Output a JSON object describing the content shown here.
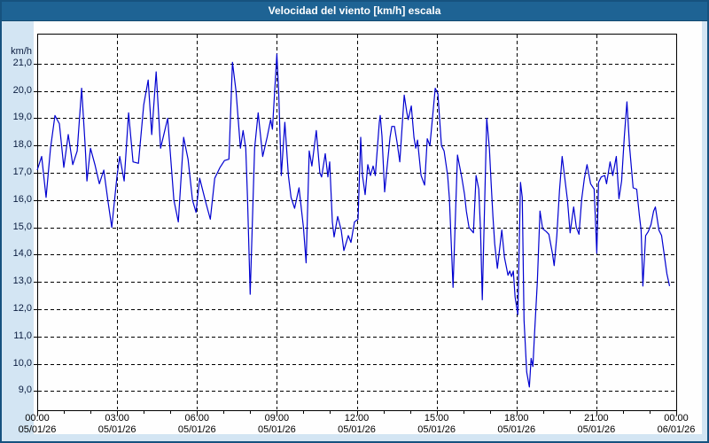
{
  "window": {
    "title": "Velocidad del viento [km/h] escala"
  },
  "colors": {
    "titlebar_bg": "#1e6394",
    "window_border": "#16527f",
    "window_bg": "#d3e5f3",
    "panel_bg": "#fefefe",
    "line_color": "#0000d0",
    "grid_color": "#000000",
    "y_label_color": "#0a1c3f",
    "x_label_color": "#000000"
  },
  "chart_data": {
    "type": "line",
    "title": "Velocidad del viento [km/h] escala",
    "y_unit_label": "km/h",
    "xlabel": "",
    "ylabel": "km/h",
    "grid": "dashed",
    "legend": "none",
    "xlim_hours": [
      0,
      24
    ],
    "ylim": [
      8.3,
      22.1
    ],
    "y_ticks": [
      {
        "v": 21,
        "label": "21,0"
      },
      {
        "v": 20,
        "label": "20,0"
      },
      {
        "v": 19,
        "label": "19,0"
      },
      {
        "v": 18,
        "label": "18,0"
      },
      {
        "v": 17,
        "label": "17,0"
      },
      {
        "v": 16,
        "label": "16,0"
      },
      {
        "v": 15,
        "label": "15,0"
      },
      {
        "v": 14,
        "label": "14,0"
      },
      {
        "v": 13,
        "label": "13,0"
      },
      {
        "v": 12,
        "label": "12,0"
      },
      {
        "v": 11,
        "label": "11,0"
      },
      {
        "v": 10,
        "label": "10,0"
      },
      {
        "v": 9,
        "label": "9,0"
      }
    ],
    "x_ticks": [
      {
        "hour": 0,
        "time": "00:00",
        "date": "05/01/26"
      },
      {
        "hour": 3,
        "time": "03:00",
        "date": "05/01/26"
      },
      {
        "hour": 6,
        "time": "06:00",
        "date": "05/01/26"
      },
      {
        "hour": 9,
        "time": "09:00",
        "date": "05/01/26"
      },
      {
        "hour": 12,
        "time": "12:00",
        "date": "05/01/26"
      },
      {
        "hour": 15,
        "time": "15:00",
        "date": "05/01/26"
      },
      {
        "hour": 18,
        "time": "18:00",
        "date": "05/01/26"
      },
      {
        "hour": 21,
        "time": "21:00",
        "date": "05/01/26"
      },
      {
        "hour": 24,
        "time": "00:00",
        "date": "06/01/26"
      }
    ],
    "minor_tick_every_hours": 1,
    "series": [
      {
        "name": "Velocidad del viento [km/h]",
        "points": [
          [
            0,
            17.1
          ],
          [
            10,
            17.6
          ],
          [
            20,
            16.1
          ],
          [
            30,
            17.9
          ],
          [
            40,
            19.1
          ],
          [
            50,
            18.8
          ],
          [
            60,
            17.2
          ],
          [
            70,
            18.4
          ],
          [
            80,
            17.3
          ],
          [
            90,
            17.8
          ],
          [
            100,
            20.1
          ],
          [
            108,
            18.0
          ],
          [
            112,
            16.7
          ],
          [
            120,
            17.9
          ],
          [
            130,
            17.3
          ],
          [
            140,
            16.6
          ],
          [
            150,
            17.1
          ],
          [
            160,
            15.9
          ],
          [
            168,
            15.0
          ],
          [
            180,
            16.9
          ],
          [
            186,
            17.6
          ],
          [
            196,
            16.7
          ],
          [
            206,
            19.2
          ],
          [
            216,
            17.4
          ],
          [
            228,
            17.35
          ],
          [
            240,
            19.5
          ],
          [
            250,
            20.4
          ],
          [
            258,
            18.4
          ],
          [
            268,
            20.7
          ],
          [
            278,
            17.9
          ],
          [
            294,
            19.0
          ],
          [
            308,
            16.0
          ],
          [
            318,
            15.2
          ],
          [
            330,
            18.3
          ],
          [
            340,
            17.5
          ],
          [
            350,
            16.0
          ],
          [
            358,
            15.55
          ],
          [
            366,
            16.8
          ],
          [
            380,
            15.9
          ],
          [
            390,
            15.3
          ],
          [
            400,
            16.8
          ],
          [
            412,
            17.2
          ],
          [
            422,
            17.45
          ],
          [
            432,
            17.5
          ],
          [
            440,
            21.05
          ],
          [
            448,
            20.0
          ],
          [
            458,
            17.9
          ],
          [
            464,
            18.55
          ],
          [
            470,
            17.9
          ],
          [
            474,
            16.05
          ],
          [
            480,
            12.55
          ],
          [
            490,
            17.9
          ],
          [
            498,
            19.2
          ],
          [
            508,
            17.6
          ],
          [
            518,
            18.3
          ],
          [
            526,
            18.95
          ],
          [
            530,
            18.6
          ],
          [
            540,
            21.35
          ],
          [
            544,
            20.0
          ],
          [
            550,
            16.9
          ],
          [
            558,
            18.85
          ],
          [
            566,
            16.9
          ],
          [
            572,
            16.1
          ],
          [
            580,
            15.7
          ],
          [
            590,
            16.45
          ],
          [
            600,
            15.0
          ],
          [
            606,
            13.7
          ],
          [
            613,
            17.8
          ],
          [
            619,
            17.25
          ],
          [
            629,
            18.55
          ],
          [
            637,
            17.0
          ],
          [
            641,
            16.85
          ],
          [
            649,
            17.7
          ],
          [
            655,
            16.85
          ],
          [
            659,
            17.4
          ],
          [
            665,
            15.2
          ],
          [
            669,
            14.65
          ],
          [
            677,
            15.4
          ],
          [
            685,
            14.9
          ],
          [
            691,
            14.15
          ],
          [
            701,
            14.7
          ],
          [
            707,
            14.45
          ],
          [
            715,
            15.2
          ],
          [
            723,
            15.3
          ],
          [
            729,
            18.3
          ],
          [
            733,
            16.9
          ],
          [
            739,
            16.2
          ],
          [
            745,
            17.3
          ],
          [
            751,
            16.9
          ],
          [
            757,
            17.25
          ],
          [
            762,
            16.9
          ],
          [
            771,
            18.85
          ],
          [
            773,
            19.1
          ],
          [
            777,
            18.35
          ],
          [
            783,
            16.3
          ],
          [
            795,
            18.3
          ],
          [
            799,
            18.7
          ],
          [
            805,
            18.7
          ],
          [
            811,
            18.1
          ],
          [
            817,
            17.4
          ],
          [
            827,
            19.85
          ],
          [
            833,
            19.2
          ],
          [
            836,
            18.95
          ],
          [
            843,
            19.45
          ],
          [
            849,
            18.3
          ],
          [
            853,
            17.9
          ],
          [
            857,
            18.2
          ],
          [
            865,
            16.9
          ],
          [
            873,
            16.55
          ],
          [
            879,
            18.25
          ],
          [
            885,
            18.0
          ],
          [
            897,
            20.1
          ],
          [
            903,
            19.9
          ],
          [
            907,
            18.95
          ],
          [
            911,
            18.0
          ],
          [
            917,
            17.8
          ],
          [
            925,
            16.9
          ],
          [
            929,
            16.05
          ],
          [
            937,
            12.8
          ],
          [
            947,
            17.65
          ],
          [
            957,
            16.8
          ],
          [
            963,
            16.2
          ],
          [
            967,
            15.6
          ],
          [
            973,
            15.0
          ],
          [
            983,
            14.8
          ],
          [
            989,
            16.9
          ],
          [
            995,
            16.4
          ],
          [
            999,
            14.9
          ],
          [
            1003,
            12.35
          ],
          [
            1013,
            19.0
          ],
          [
            1019,
            17.9
          ],
          [
            1023,
            16.6
          ],
          [
            1027,
            15.4
          ],
          [
            1031,
            14.4
          ],
          [
            1037,
            13.5
          ],
          [
            1047,
            14.9
          ],
          [
            1053,
            13.9
          ],
          [
            1061,
            13.25
          ],
          [
            1065,
            13.4
          ],
          [
            1069,
            13.2
          ],
          [
            1073,
            13.4
          ],
          [
            1077,
            12.45
          ],
          [
            1083,
            11.8
          ],
          [
            1089,
            16.65
          ],
          [
            1093,
            16.1
          ],
          [
            1097,
            11.6
          ],
          [
            1103,
            9.7
          ],
          [
            1109,
            9.15
          ],
          [
            1113,
            10.2
          ],
          [
            1117,
            9.9
          ],
          [
            1121,
            11.2
          ],
          [
            1127,
            13.0
          ],
          [
            1133,
            15.6
          ],
          [
            1139,
            14.95
          ],
          [
            1147,
            14.85
          ],
          [
            1153,
            14.75
          ],
          [
            1161,
            14.05
          ],
          [
            1165,
            13.6
          ],
          [
            1171,
            14.7
          ],
          [
            1177,
            16.35
          ],
          [
            1183,
            17.6
          ],
          [
            1189,
            16.8
          ],
          [
            1195,
            16.0
          ],
          [
            1201,
            14.8
          ],
          [
            1209,
            15.75
          ],
          [
            1215,
            15.0
          ],
          [
            1221,
            14.75
          ],
          [
            1227,
            16.05
          ],
          [
            1233,
            16.8
          ],
          [
            1239,
            17.3
          ],
          [
            1247,
            16.6
          ],
          [
            1255,
            16.4
          ],
          [
            1261,
            14.05
          ],
          [
            1265,
            16.65
          ],
          [
            1271,
            16.85
          ],
          [
            1279,
            16.9
          ],
          [
            1283,
            16.6
          ],
          [
            1291,
            17.4
          ],
          [
            1297,
            16.9
          ],
          [
            1305,
            17.6
          ],
          [
            1311,
            16.05
          ],
          [
            1317,
            16.7
          ],
          [
            1323,
            18.3
          ],
          [
            1329,
            19.6
          ],
          [
            1335,
            17.95
          ],
          [
            1339,
            17.2
          ],
          [
            1343,
            16.45
          ],
          [
            1351,
            16.4
          ],
          [
            1357,
            15.45
          ],
          [
            1361,
            14.9
          ],
          [
            1365,
            12.85
          ],
          [
            1371,
            14.7
          ],
          [
            1377,
            14.85
          ],
          [
            1383,
            15.1
          ],
          [
            1389,
            15.6
          ],
          [
            1393,
            15.75
          ],
          [
            1401,
            14.9
          ],
          [
            1407,
            14.7
          ],
          [
            1413,
            14.0
          ],
          [
            1419,
            13.3
          ],
          [
            1425,
            12.85
          ]
        ]
      }
    ]
  }
}
